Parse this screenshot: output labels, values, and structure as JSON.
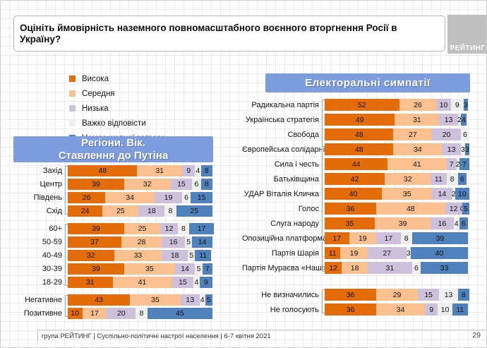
{
  "page": {
    "title": "Оцініть ймовірність наземного повномасштабного воєнного вторгнення Росії в Україну?",
    "logo": "РЕЙТИНГ",
    "footer": "група РЕЙТИНГ | Суспільно-політичні настрої населення | 6-7 квітня 2021",
    "page_number": "29"
  },
  "legend": [
    {
      "label": "Висока",
      "color": "#E36C09"
    },
    {
      "label": "Середня",
      "color": "#FAC090"
    },
    {
      "label": "Низька",
      "color": "#CCC0DA"
    },
    {
      "label": "Важко відповісти",
      "color": "#F1EFED"
    },
    {
      "label": "Немає жодної загрози",
      "color": "#4F81BD"
    }
  ],
  "chart_data": [
    {
      "type": "bar",
      "stacked": true,
      "orientation": "horizontal",
      "unit": "%",
      "xlim": [
        0,
        100
      ],
      "header_lines": [
        "Регіони. Вік.",
        "Ставлення до Путіна"
      ],
      "series_names": [
        "Висока",
        "Середня",
        "Низька",
        "Важко відповісти",
        "Немає жодної загрози"
      ],
      "groups": [
        {
          "name": "regions",
          "rows": [
            {
              "label": "Захід",
              "values": [
                48,
                31,
                9,
                4,
                8
              ]
            },
            {
              "label": "Центр",
              "values": [
                39,
                32,
                15,
                6,
                8
              ]
            },
            {
              "label": "Південь",
              "values": [
                26,
                34,
                19,
                6,
                15
              ]
            },
            {
              "label": "Схід",
              "values": [
                24,
                25,
                18,
                8,
                25
              ]
            }
          ]
        },
        {
          "name": "age",
          "rows": [
            {
              "label": "60+",
              "values": [
                39,
                25,
                12,
                8,
                17
              ]
            },
            {
              "label": "50-59",
              "values": [
                37,
                28,
                16,
                5,
                14
              ]
            },
            {
              "label": "40-49",
              "values": [
                32,
                33,
                18,
                5,
                11
              ]
            },
            {
              "label": "30-39",
              "values": [
                39,
                35,
                14,
                5,
                7
              ]
            },
            {
              "label": "18-29",
              "values": [
                31,
                41,
                15,
                4,
                9
              ]
            }
          ]
        },
        {
          "name": "putin-attitude",
          "rows": [
            {
              "label": "Негативне",
              "values": [
                43,
                35,
                13,
                4,
                5
              ]
            },
            {
              "label": "Позитивне",
              "values": [
                10,
                17,
                20,
                8,
                45
              ]
            }
          ]
        }
      ]
    },
    {
      "type": "bar",
      "stacked": true,
      "orientation": "horizontal",
      "unit": "%",
      "xlim": [
        0,
        100
      ],
      "header": "Електоральні симпатії",
      "series_names": [
        "Висока",
        "Середня",
        "Низька",
        "Важко відповісти",
        "Немає жодної загрози"
      ],
      "groups": [
        {
          "name": "parties",
          "rows": [
            {
              "label": "Радикальна партія",
              "values": [
                52,
                26,
                10,
                9,
                3
              ]
            },
            {
              "label": "Українська стратегія",
              "values": [
                49,
                31,
                13,
                2,
                4
              ]
            },
            {
              "label": "Свобода",
              "values": [
                48,
                27,
                20,
                6,
                null
              ]
            },
            {
              "label": "Європейська солідарність",
              "values": [
                48,
                34,
                13,
                3,
                3
              ]
            },
            {
              "label": "Сила і честь",
              "values": [
                44,
                41,
                7,
                2,
                7
              ]
            },
            {
              "label": "Батьківщина",
              "values": [
                42,
                32,
                11,
                8,
                6
              ]
            },
            {
              "label": "УДАР Віталія Кличка",
              "values": [
                40,
                35,
                14,
                2,
                10
              ]
            },
            {
              "label": "Голос",
              "values": [
                36,
                48,
                12,
                0,
                5
              ]
            },
            {
              "label": "Слуга народу",
              "values": [
                35,
                39,
                16,
                4,
                6
              ]
            },
            {
              "label": "Опозиційна платформа",
              "values": [
                17,
                19,
                17,
                8,
                39
              ]
            },
            {
              "label": "Партія Шарія",
              "values": [
                11,
                19,
                27,
                3,
                40
              ]
            },
            {
              "label": "Партія Мураєва «Наші»",
              "values": [
                12,
                18,
                31,
                6,
                33
              ]
            }
          ]
        },
        {
          "name": "undecided",
          "rows": [
            {
              "label": "Не визначились",
              "values": [
                36,
                29,
                15,
                13,
                8
              ]
            },
            {
              "label": "Не голосують",
              "values": [
                36,
                34,
                9,
                10,
                11
              ]
            }
          ]
        }
      ]
    }
  ]
}
